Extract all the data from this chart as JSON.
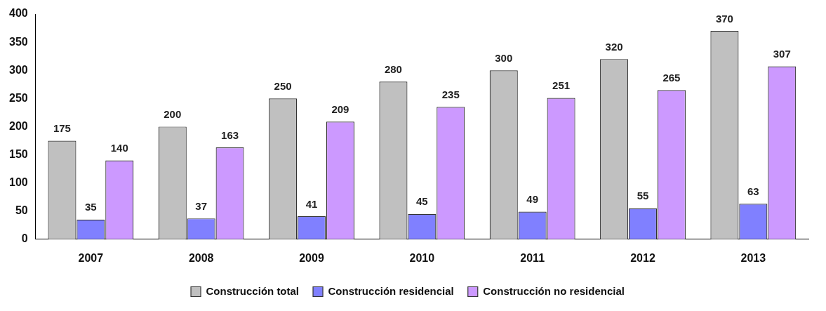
{
  "chart_data": {
    "type": "bar",
    "categories": [
      "2007",
      "2008",
      "2009",
      "2010",
      "2011",
      "2012",
      "2013"
    ],
    "series": [
      {
        "name": "Construcción total",
        "color": "#c0c0c0",
        "values": [
          175,
          200,
          250,
          280,
          300,
          320,
          370
        ]
      },
      {
        "name": "Construcción residencial",
        "color": "#8080ff",
        "values": [
          35,
          37,
          41,
          45,
          49,
          55,
          63
        ]
      },
      {
        "name": "Construcción no residencial",
        "color": "#cc99ff",
        "values": [
          140,
          163,
          209,
          235,
          251,
          265,
          307
        ]
      }
    ],
    "ylim": [
      0,
      400
    ],
    "yticks": [
      0,
      50,
      100,
      150,
      200,
      250,
      300,
      350,
      400
    ],
    "grid": false,
    "legend": "bottom",
    "data_labels": true
  }
}
